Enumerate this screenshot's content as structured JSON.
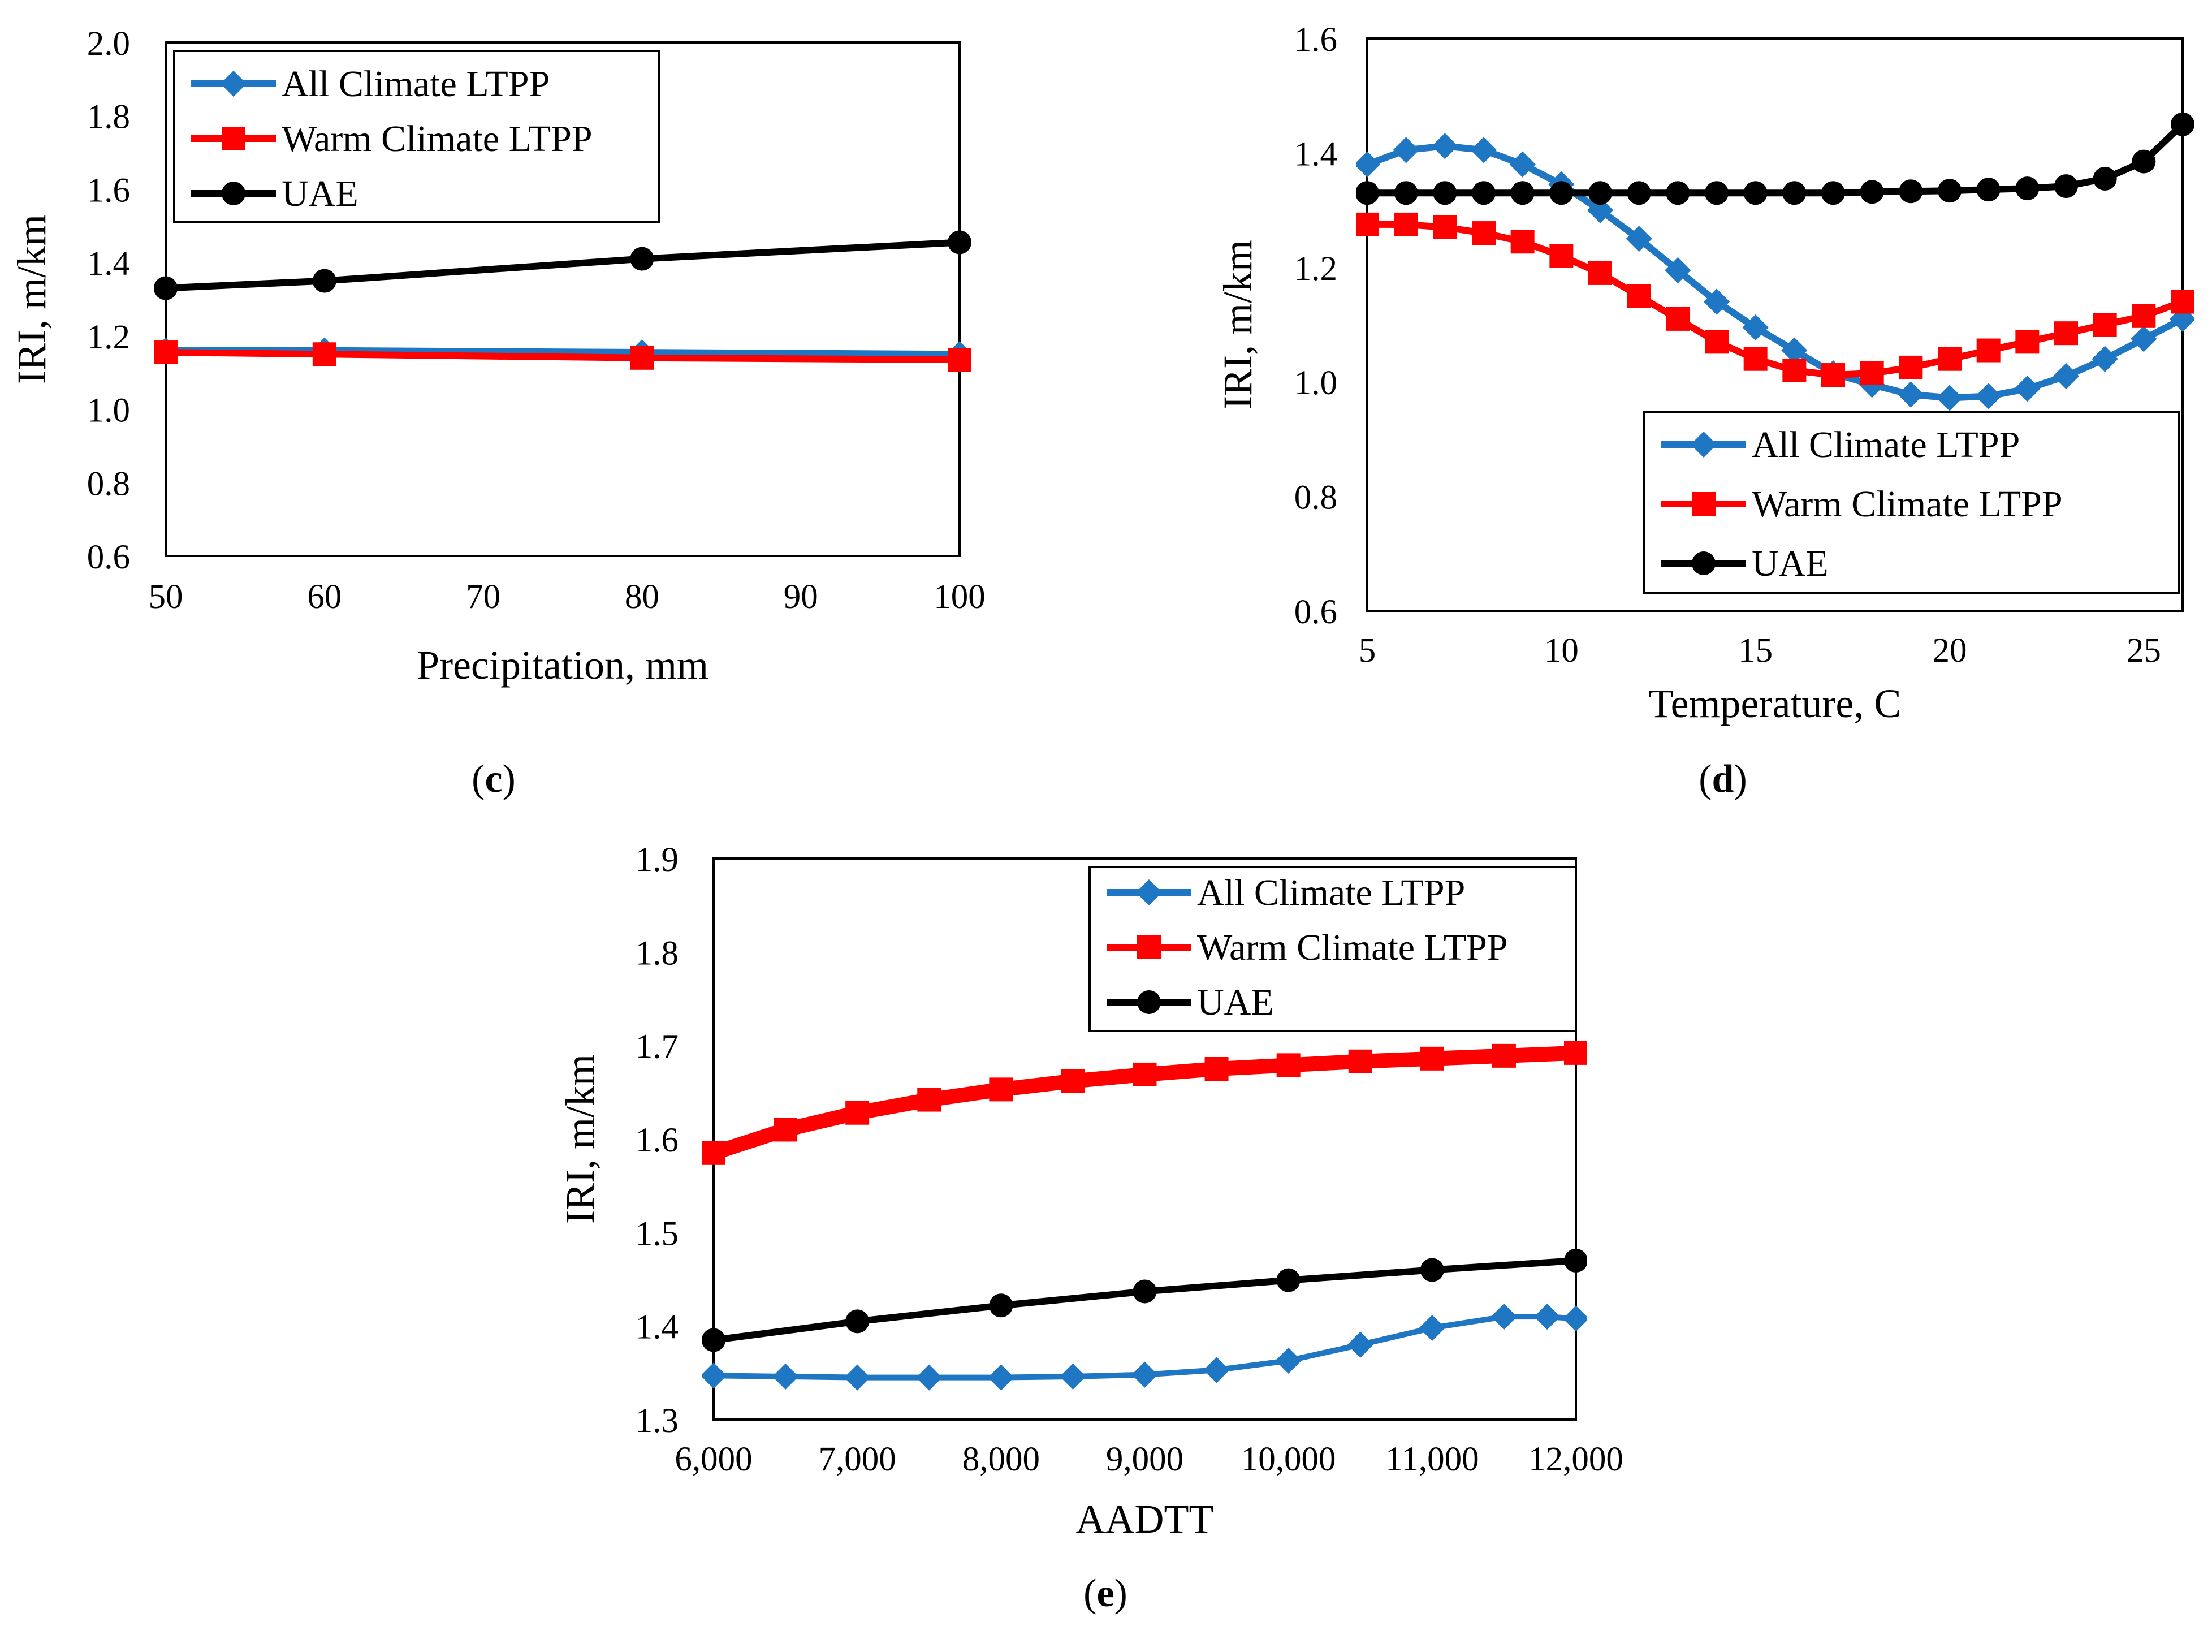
{
  "chart_data": [
    {
      "id": "c",
      "type": "line",
      "caption_letter": "c",
      "xlabel": "Precipitation, mm",
      "ylabel": "IRI, m/km",
      "xlim": [
        50,
        100
      ],
      "ylim": [
        0.6,
        2.0
      ],
      "xticks": [
        50,
        60,
        70,
        80,
        90,
        100
      ],
      "yticks": [
        0.6,
        0.8,
        1.0,
        1.2,
        1.4,
        1.6,
        1.8,
        2.0
      ],
      "xtick_labels": [
        "50",
        "60",
        "70",
        "80",
        "90",
        "100"
      ],
      "ytick_labels": [
        "0.6",
        "0.8",
        "1.0",
        "1.2",
        "1.4",
        "1.6",
        "1.8",
        "2.0"
      ],
      "legend_position": "top-left",
      "series": [
        {
          "name": "All Climate LTPP",
          "color": "#1f77c4",
          "marker": "diamond",
          "x": [
            50,
            60,
            80,
            100
          ],
          "y": [
            1.16,
            1.16,
            1.155,
            1.15
          ]
        },
        {
          "name": "Warm Climate LTPP",
          "color": "#ff0000",
          "marker": "square",
          "x": [
            50,
            60,
            80,
            100
          ],
          "y": [
            1.155,
            1.15,
            1.14,
            1.135
          ]
        },
        {
          "name": "UAE",
          "color": "#000000",
          "marker": "circle",
          "x": [
            50,
            60,
            80,
            100
          ],
          "y": [
            1.33,
            1.35,
            1.41,
            1.455
          ]
        }
      ]
    },
    {
      "id": "d",
      "type": "line",
      "caption_letter": "d",
      "xlabel": "Temperature, C",
      "ylabel": "IRI, m/km",
      "xlim": [
        5,
        26
      ],
      "ylim": [
        0.6,
        1.6
      ],
      "xticks": [
        5,
        10,
        15,
        20,
        25
      ],
      "yticks": [
        0.6,
        0.8,
        1.0,
        1.2,
        1.4,
        1.6
      ],
      "xtick_labels": [
        "5",
        "10",
        "15",
        "20",
        "25"
      ],
      "ytick_labels": [
        "0.6",
        "0.8",
        "1.0",
        "1.2",
        "1.4",
        "1.6"
      ],
      "legend_position": "bottom-right",
      "series": [
        {
          "name": "All Climate LTPP",
          "color": "#1f77c4",
          "marker": "diamond",
          "x": [
            5,
            6,
            7,
            8,
            9,
            10,
            11,
            12,
            13,
            14,
            15,
            16,
            17,
            18,
            19,
            20,
            21,
            22,
            23,
            24,
            25,
            26
          ],
          "y": [
            1.38,
            1.405,
            1.412,
            1.405,
            1.38,
            1.345,
            1.3,
            1.25,
            1.195,
            1.14,
            1.095,
            1.055,
            1.015,
            0.995,
            0.978,
            0.972,
            0.975,
            0.988,
            1.01,
            1.04,
            1.075,
            1.11
          ]
        },
        {
          "name": "Warm Climate LTPP",
          "color": "#ff0000",
          "marker": "square",
          "x": [
            5,
            6,
            7,
            8,
            9,
            10,
            11,
            12,
            13,
            14,
            15,
            16,
            17,
            18,
            19,
            20,
            21,
            22,
            23,
            24,
            25,
            26
          ],
          "y": [
            1.275,
            1.275,
            1.27,
            1.26,
            1.245,
            1.22,
            1.19,
            1.15,
            1.11,
            1.07,
            1.04,
            1.02,
            1.012,
            1.015,
            1.025,
            1.04,
            1.055,
            1.07,
            1.085,
            1.1,
            1.115,
            1.14
          ]
        },
        {
          "name": "UAE",
          "color": "#000000",
          "marker": "circle",
          "x": [
            5,
            6,
            7,
            8,
            9,
            10,
            11,
            12,
            13,
            14,
            15,
            16,
            17,
            18,
            19,
            20,
            21,
            22,
            23,
            24,
            25,
            26
          ],
          "y": [
            1.33,
            1.33,
            1.33,
            1.33,
            1.33,
            1.33,
            1.33,
            1.33,
            1.33,
            1.33,
            1.33,
            1.33,
            1.33,
            1.332,
            1.333,
            1.334,
            1.336,
            1.338,
            1.342,
            1.355,
            1.385,
            1.45
          ]
        }
      ]
    },
    {
      "id": "e",
      "type": "line",
      "caption_letter": "e",
      "xlabel": "AADTT",
      "ylabel": "IRI, m/km",
      "xlim": [
        6000,
        12000
      ],
      "ylim": [
        1.3,
        1.9
      ],
      "xticks": [
        6000,
        7000,
        8000,
        9000,
        10000,
        11000,
        12000
      ],
      "yticks": [
        1.3,
        1.4,
        1.5,
        1.6,
        1.7,
        1.8,
        1.9
      ],
      "xtick_labels": [
        "6,000",
        "7,000",
        "8,000",
        "9,000",
        "10,000",
        "11,000",
        "12,000"
      ],
      "ytick_labels": [
        "1.3",
        "1.4",
        "1.5",
        "1.6",
        "1.7",
        "1.8",
        "1.9"
      ],
      "legend_position": "top-right",
      "series": [
        {
          "name": "All Climate LTPP",
          "color": "#1f77c4",
          "marker": "diamond",
          "x": [
            6000,
            6500,
            7000,
            7500,
            8000,
            8500,
            9000,
            9500,
            10000,
            10500,
            11000,
            11500,
            11800,
            12000
          ],
          "y": [
            1.347,
            1.346,
            1.345,
            1.345,
            1.345,
            1.346,
            1.348,
            1.353,
            1.363,
            1.38,
            1.398,
            1.41,
            1.41,
            1.408
          ]
        },
        {
          "name": "Warm Climate LTPP",
          "color": "#ff0000",
          "marker": "square",
          "x": [
            6000,
            6500,
            7000,
            7500,
            8000,
            8500,
            9000,
            9500,
            10000,
            10500,
            11000,
            11500,
            12000
          ],
          "y": [
            1.585,
            1.61,
            1.628,
            1.642,
            1.653,
            1.662,
            1.669,
            1.675,
            1.679,
            1.683,
            1.686,
            1.689,
            1.692
          ]
        },
        {
          "name": "UAE",
          "color": "#000000",
          "marker": "circle",
          "x": [
            6000,
            7000,
            8000,
            9000,
            10000,
            11000,
            12000
          ],
          "y": [
            1.385,
            1.405,
            1.422,
            1.437,
            1.449,
            1.46,
            1.47
          ]
        }
      ]
    }
  ]
}
